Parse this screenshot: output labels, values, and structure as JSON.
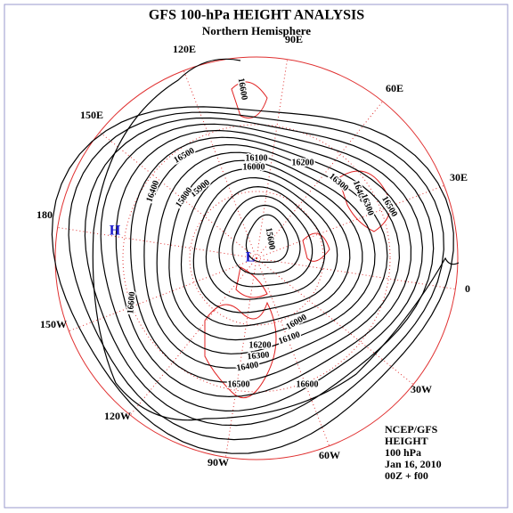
{
  "header": {
    "title": "GFS 100-hPa HEIGHT ANALYSIS",
    "subtitle": "Northern Hemisphere"
  },
  "map": {
    "longitude_labels": [
      "120E",
      "90E",
      "60E",
      "30E",
      "0",
      "30W",
      "60W",
      "90W",
      "120W",
      "150W",
      "180",
      "150E"
    ],
    "high_label": "H",
    "low_label": "L",
    "contour_labels": [
      16600,
      16500,
      16400,
      16300,
      16200,
      16100,
      16000,
      15900,
      15800,
      15600,
      16600,
      16600,
      16500,
      16400,
      16300,
      16200,
      16100,
      16000,
      16500,
      16400,
      16300
    ]
  },
  "info": [
    "NCEP/GFS",
    "HEIGHT",
    "100 hPa",
    "Jan 16, 2010",
    "00Z + f00"
  ]
}
